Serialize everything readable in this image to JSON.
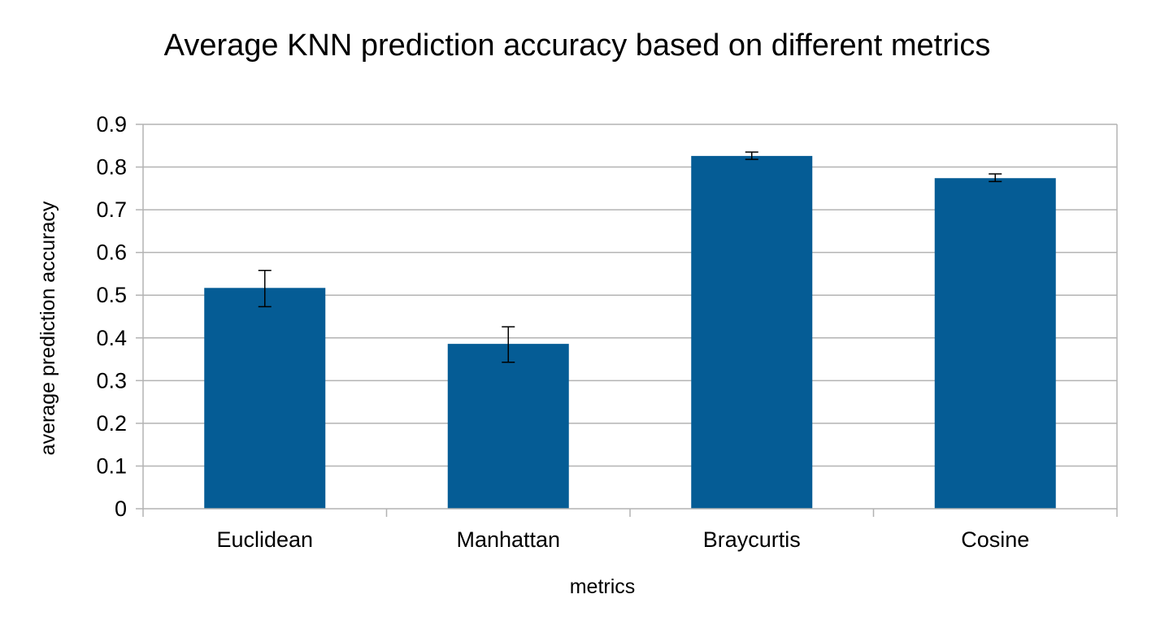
{
  "chart_data": {
    "type": "bar",
    "title": "Average KNN prediction accuracy based on different metrics",
    "xlabel": "metrics",
    "ylabel": "average prediction accuracy",
    "categories": [
      "Euclidean",
      "Manhattan",
      "Braycurtis",
      "Cosine"
    ],
    "values": [
      0.517,
      0.386,
      0.826,
      0.774
    ],
    "error_low": [
      0.473,
      0.343,
      0.818,
      0.766
    ],
    "error_high": [
      0.558,
      0.426,
      0.835,
      0.784
    ],
    "ylim": [
      0,
      0.9
    ],
    "yticks": [
      "0",
      "0.1",
      "0.2",
      "0.3",
      "0.4",
      "0.5",
      "0.6",
      "0.7",
      "0.8",
      "0.9"
    ],
    "ytick_values": [
      0,
      0.1,
      0.2,
      0.3,
      0.4,
      0.5,
      0.6,
      0.7,
      0.8,
      0.9
    ],
    "grid": true,
    "bar_color": "#055C95",
    "gridline_color": "#B3B3B3",
    "error_bar_color": "#000000"
  }
}
